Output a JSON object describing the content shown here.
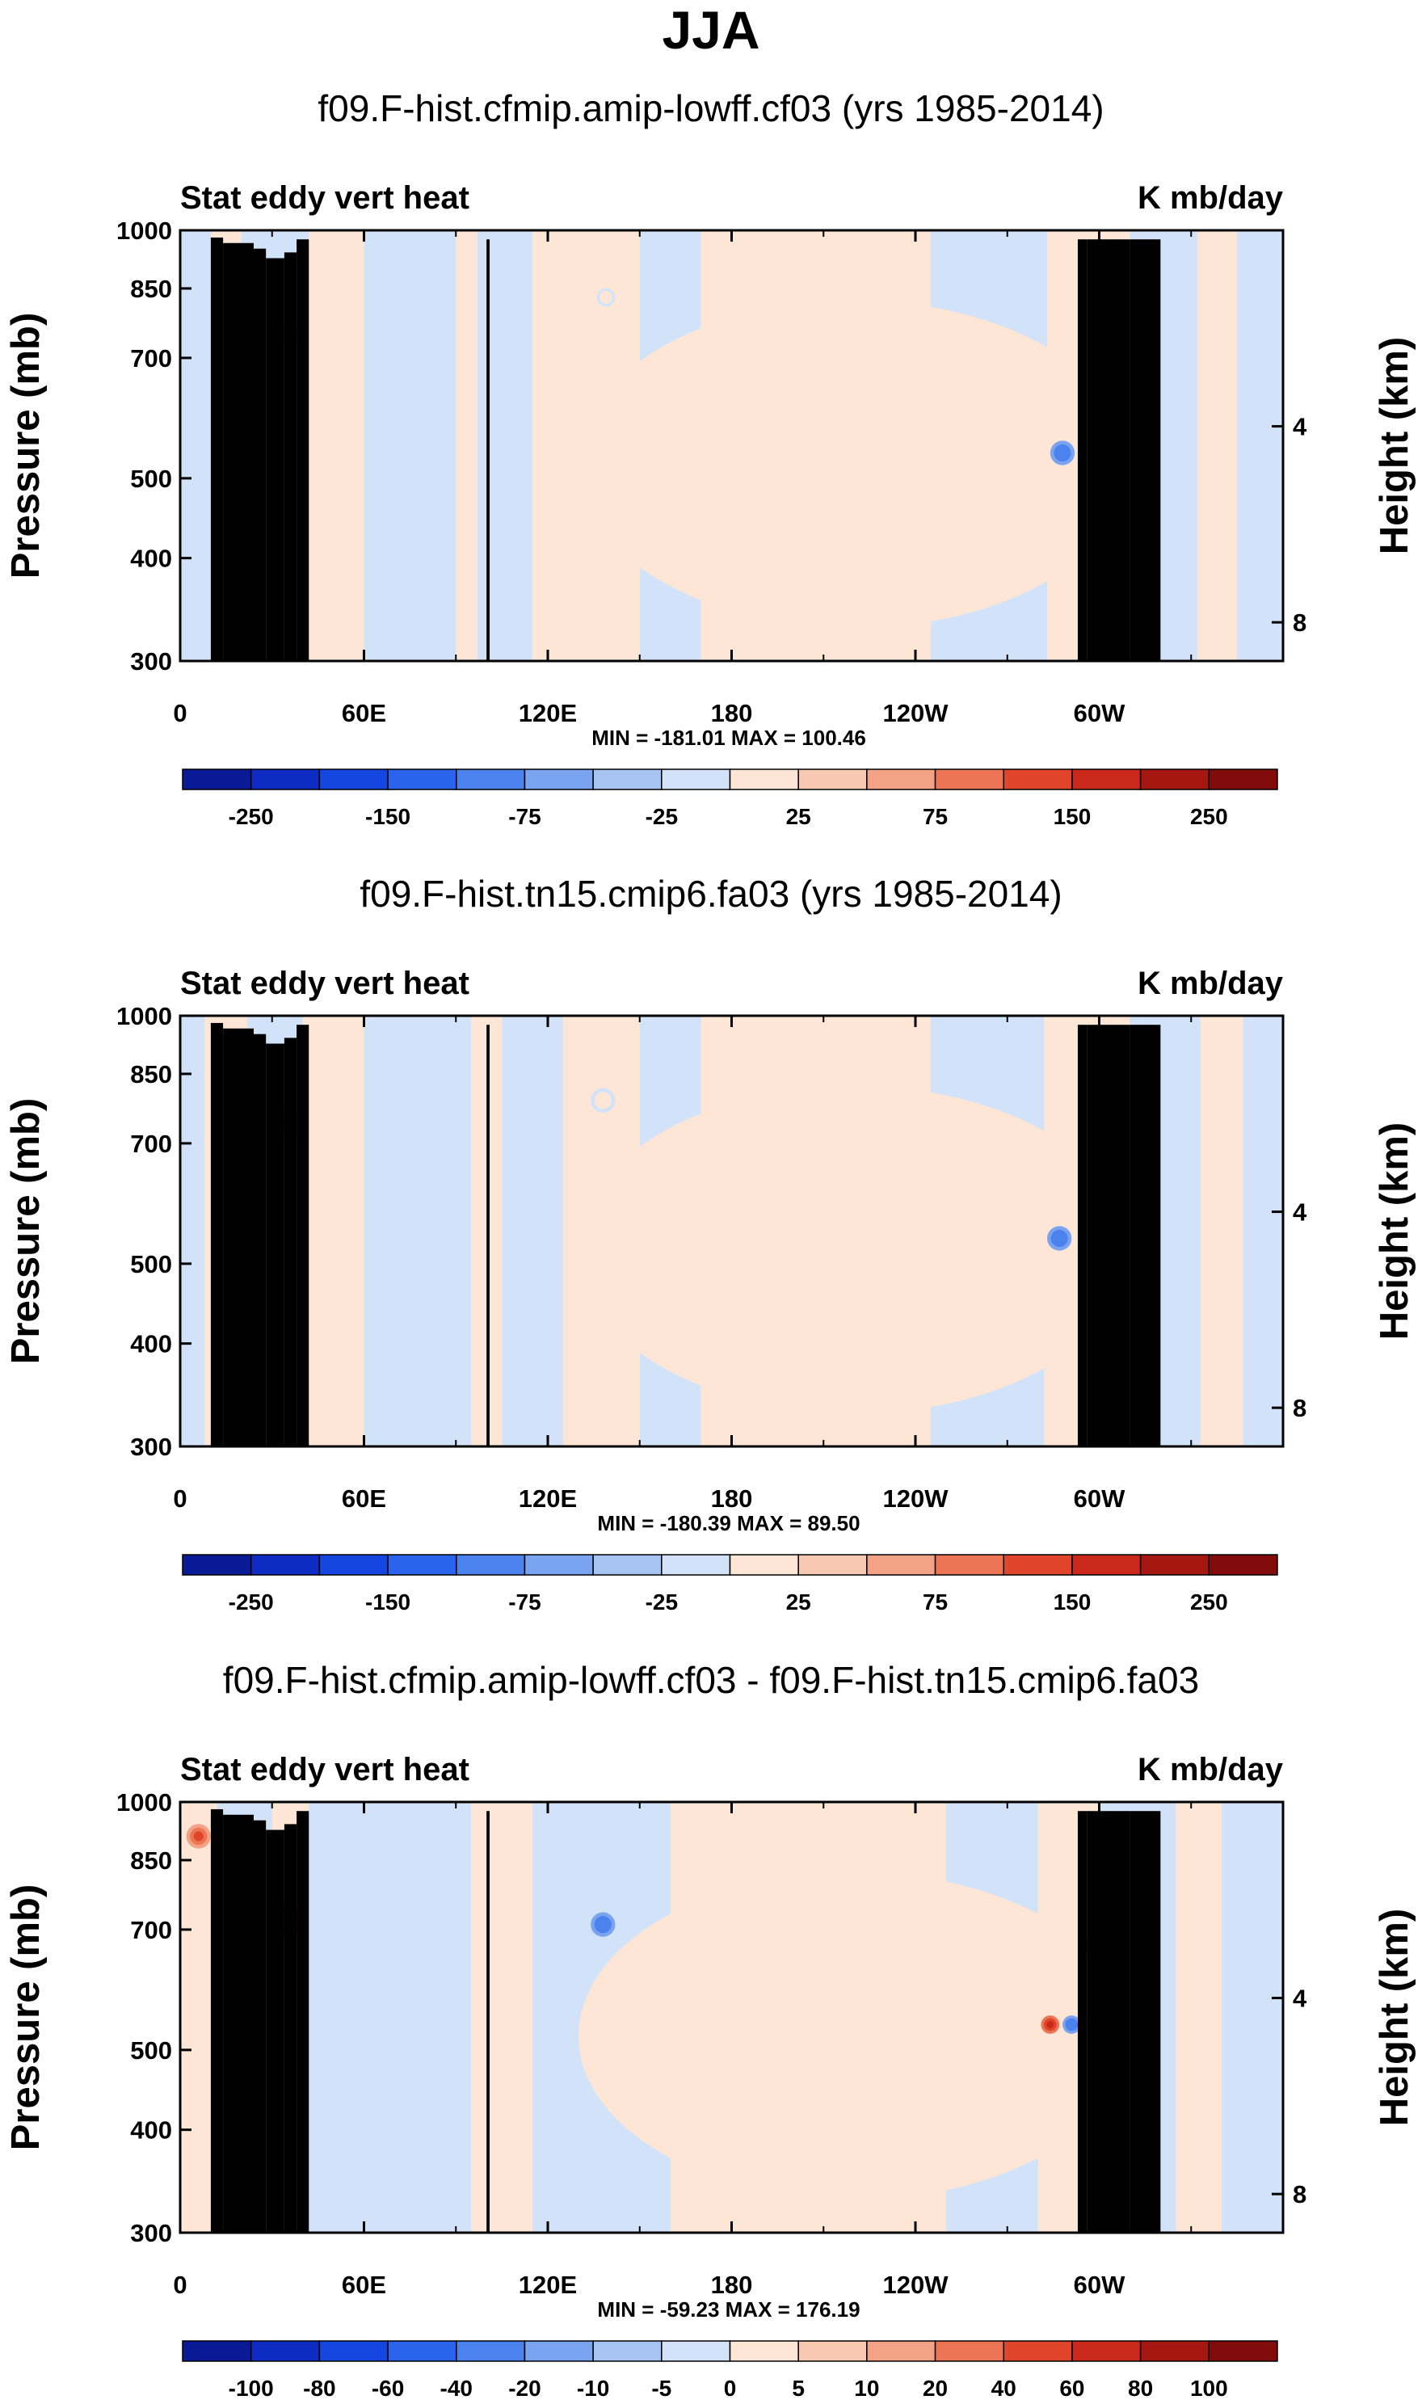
{
  "figure_title": "JJA",
  "chart_data": [
    {
      "type": "heatmap",
      "title": "f09.F-hist.cfmip.amip-lowff.cf03 (yrs 1985-2014)",
      "left_label": "Stat eddy vert heat",
      "right_label": "K mb/day",
      "ylabel": "Pressure (mb)",
      "ylabel_right": "Height (km)",
      "x_ticks": [
        "0",
        "60E",
        "120E",
        "180",
        "120W",
        "60W"
      ],
      "x_tick_values": [
        0,
        60,
        120,
        180,
        240,
        300
      ],
      "xlim": [
        0,
        360
      ],
      "y_ticks": [
        300,
        400,
        500,
        700,
        850,
        1000
      ],
      "ylim": [
        1000,
        300
      ],
      "y2_ticks": [
        "8",
        "4"
      ],
      "y2_tick_values": [
        8,
        4
      ],
      "min_max": "MIN = -181.01   MAX = 100.46",
      "colorbar_labels": [
        "-250",
        "-150",
        "-75",
        "-25",
        "25",
        "75",
        "150",
        "250"
      ],
      "features": [
        {
          "lon_center": 288,
          "lon_width": 4,
          "p_top": 300,
          "p_bottom": 960,
          "value": -150
        },
        {
          "lon_center": 36,
          "lon_width": 4,
          "p_top": 650,
          "p_bottom": 860,
          "value": -60
        },
        {
          "lon_center": 300,
          "lon_width": 5,
          "p_top": 780,
          "p_bottom": 900,
          "value": 40
        },
        {
          "lon_center": 139,
          "lon_width": 3,
          "p_top": 790,
          "p_bottom": 870,
          "value": 40
        }
      ]
    },
    {
      "type": "heatmap",
      "title": "f09.F-hist.tn15.cmip6.fa03 (yrs 1985-2014)",
      "left_label": "Stat eddy vert heat",
      "right_label": "K mb/day",
      "ylabel": "Pressure (mb)",
      "ylabel_right": "Height (km)",
      "x_ticks": [
        "0",
        "60E",
        "120E",
        "180",
        "120W",
        "60W"
      ],
      "x_tick_values": [
        0,
        60,
        120,
        180,
        240,
        300
      ],
      "xlim": [
        0,
        360
      ],
      "y_ticks": [
        300,
        400,
        500,
        700,
        850,
        1000
      ],
      "ylim": [
        1000,
        300
      ],
      "y2_ticks": [
        "8",
        "4"
      ],
      "y2_tick_values": [
        8,
        4
      ],
      "min_max": "MIN = -180.39   MAX =  89.50",
      "colorbar_labels": [
        "-250",
        "-150",
        "-75",
        "-25",
        "25",
        "75",
        "150",
        "250"
      ],
      "features": [
        {
          "lon_center": 287,
          "lon_width": 4,
          "p_top": 300,
          "p_bottom": 960,
          "value": -150
        },
        {
          "lon_center": 35,
          "lon_width": 5,
          "p_top": 620,
          "p_bottom": 880,
          "value": -90
        },
        {
          "lon_center": 300,
          "lon_width": 5,
          "p_top": 730,
          "p_bottom": 910,
          "value": 40
        },
        {
          "lon_center": 138,
          "lon_width": 4,
          "p_top": 700,
          "p_bottom": 890,
          "value": 40
        }
      ]
    },
    {
      "type": "heatmap",
      "title": "f09.F-hist.cfmip.amip-lowff.cf03 - f09.F-hist.tn15.cmip6.fa03",
      "left_label": "Stat eddy vert heat",
      "right_label": "K mb/day",
      "ylabel": "Pressure (mb)",
      "ylabel_right": "Height (km)",
      "x_ticks": [
        "0",
        "60E",
        "120E",
        "180",
        "120W",
        "60W"
      ],
      "x_tick_values": [
        0,
        60,
        120,
        180,
        240,
        300
      ],
      "xlim": [
        0,
        360
      ],
      "y_ticks": [
        300,
        400,
        500,
        700,
        850,
        1000
      ],
      "ylim": [
        1000,
        300
      ],
      "y2_ticks": [
        "8",
        "4"
      ],
      "y2_tick_values": [
        8,
        4
      ],
      "min_max": "MIN = -59.23   MAX = 176.19",
      "colorbar_labels": [
        "-100",
        "-80",
        "-60",
        "-40",
        "-20",
        "-10",
        "-5",
        "0",
        "5",
        "10",
        "20",
        "40",
        "60",
        "80",
        "100"
      ],
      "features": [
        {
          "lon_center": 35,
          "lon_width": 5,
          "p_top": 560,
          "p_bottom": 920,
          "value": 60
        },
        {
          "lon_center": 6,
          "lon_width": 4,
          "p_top": 860,
          "p_bottom": 960,
          "value": 40
        },
        {
          "lon_center": 284,
          "lon_width": 3,
          "p_top": 300,
          "p_bottom": 960,
          "value": 60
        },
        {
          "lon_center": 291,
          "lon_width": 3,
          "p_top": 300,
          "p_bottom": 960,
          "value": -40
        },
        {
          "lon_center": 297,
          "lon_width": 3,
          "p_top": 500,
          "p_bottom": 900,
          "value": -30
        },
        {
          "lon_center": 138,
          "lon_width": 4,
          "p_top": 560,
          "p_bottom": 900,
          "value": -30
        },
        {
          "lon_center": 317,
          "lon_width": 3,
          "p_top": 870,
          "p_bottom": 960,
          "value": 40
        }
      ]
    }
  ]
}
